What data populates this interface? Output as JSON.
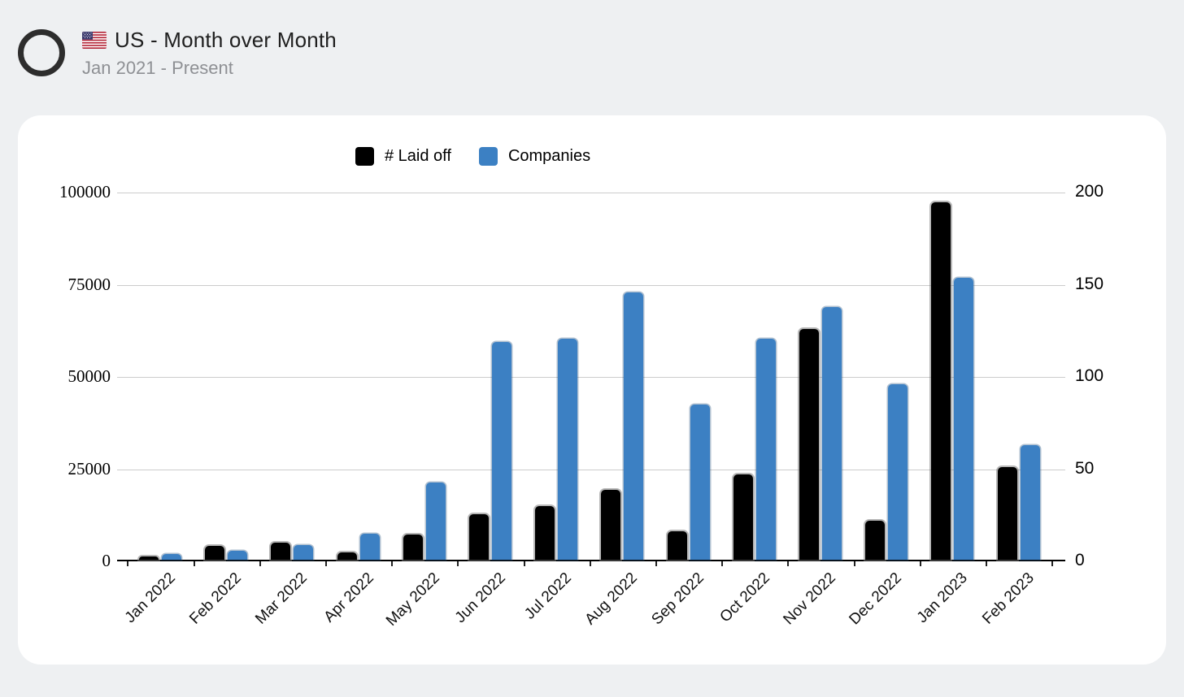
{
  "header": {
    "title": "US - Month over Month",
    "subtitle": "Jan 2021 - Present",
    "flag_icon": "us-flag",
    "logo_icon": "circle-ring-logo"
  },
  "legend": [
    {
      "label": "# Laid off",
      "color": "#000000"
    },
    {
      "label": "Companies",
      "color": "#3c80c3"
    }
  ],
  "colors": {
    "background": "#eef0f2",
    "card": "#ffffff",
    "laid_off": "#000000",
    "companies": "#3c80c3",
    "gridline": "#cccccc",
    "axis": "#000000",
    "subtitle": "#8e9094"
  },
  "chart_data": {
    "type": "bar",
    "title": "US - Month over Month",
    "subtitle": "Jan 2021 - Present",
    "categories": [
      "Jan 2022",
      "Feb 2022",
      "Mar 2022",
      "Apr 2022",
      "May 2022",
      "Jun 2022",
      "Jul 2022",
      "Aug 2022",
      "Sep 2022",
      "Oct 2022",
      "Nov 2022",
      "Dec 2022",
      "Jan 2023",
      "Feb 2023"
    ],
    "series": [
      {
        "name": "# Laid off",
        "axis": "left",
        "color": "#000000",
        "values": [
          900,
          3700,
          4600,
          2000,
          6800,
          12400,
          14600,
          19000,
          7700,
          23200,
          62500,
          10600,
          97000,
          25000
        ]
      },
      {
        "name": "Companies",
        "axis": "right",
        "color": "#3c80c3",
        "values": [
          3,
          5,
          8,
          14,
          42,
          118,
          120,
          145,
          84,
          120,
          137,
          95,
          153,
          62
        ]
      }
    ],
    "left_axis": {
      "ticks": [
        "100000",
        "75000",
        "50000",
        "25000",
        "0"
      ],
      "min": 0,
      "max": 100000
    },
    "right_axis": {
      "ticks": [
        "200",
        "150",
        "100",
        "50",
        "0"
      ],
      "min": 0,
      "max": 200
    },
    "grid": true,
    "legend_position": "top"
  }
}
